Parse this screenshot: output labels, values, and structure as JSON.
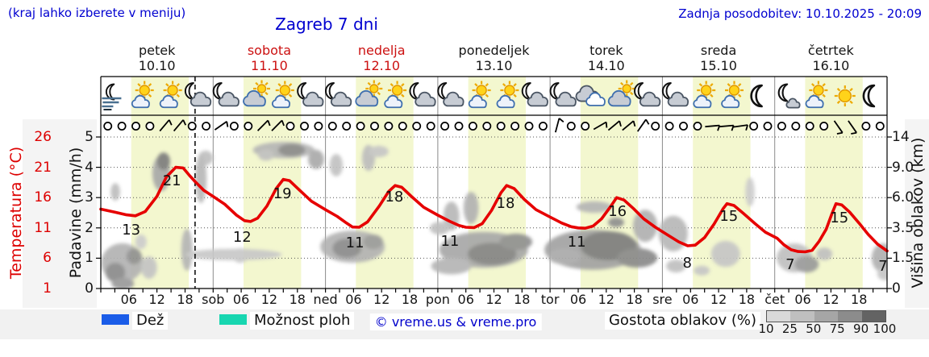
{
  "header": {
    "hint": "(kraj lahko izberete v meniju)",
    "title": "Zagreb 7 dni",
    "updated": "Zadnja posodobitev: 10.10.2025 - 20:09"
  },
  "days": [
    {
      "name": "petek",
      "date": "10.10",
      "weekend": false
    },
    {
      "name": "sobota",
      "date": "11.10",
      "weekend": true
    },
    {
      "name": "nedelja",
      "date": "12.10",
      "weekend": true
    },
    {
      "name": "ponedeljek",
      "date": "13.10",
      "weekend": false
    },
    {
      "name": "torek",
      "date": "14.10",
      "weekend": false
    },
    {
      "name": "sreda",
      "date": "15.10",
      "weekend": false
    },
    {
      "name": "četrtek",
      "date": "16.10",
      "weekend": false
    }
  ],
  "axes": {
    "temp_label": "Temperatura (°C)",
    "temp_ticks": [
      "26",
      "21",
      "16",
      "11",
      "6",
      "1"
    ],
    "precip_label": "Padavine (mm/h)",
    "precip_ticks": [
      "5",
      "4",
      "3",
      "2",
      "1",
      "0"
    ],
    "cloud_label": "Višina oblakov (km)",
    "cloud_ticks": [
      "14",
      "9.0",
      "6.0",
      "3.5",
      "1.5",
      "0"
    ],
    "hour_labels": [
      "06",
      "12",
      "18"
    ],
    "day_abbr": [
      "sob",
      "ned",
      "pon",
      "tor",
      "sre",
      "čet"
    ]
  },
  "legend": {
    "rain_label": "Dež",
    "rain_color": "#1a5ce8",
    "showers_label": "Možnost ploh",
    "showers_color": "#17d6b0",
    "copyright": "© vreme.us & vreme.pro",
    "cloud_density_label": "Gostota oblakov (%)",
    "density_ticks": [
      "10",
      "25",
      "50",
      "75",
      "90",
      "100"
    ],
    "density_colors": [
      "#d9d9d9",
      "#bfbfbf",
      "#a6a6a6",
      "#8c8c8c",
      "#636363"
    ]
  },
  "chart_data": {
    "type": "line",
    "title": "Zagreb 7 dni",
    "x_axis": "hours from 10.10.2025 00:00, ticks every 3h, labels 06/12/18 per day",
    "x_range": [
      0,
      168
    ],
    "y_left_precip_mm_range": [
      0,
      5
    ],
    "y_left_temp_c_ticks": [
      1,
      6,
      11,
      16,
      21,
      26
    ],
    "y_right_cloud_km_ticks": [
      0,
      1.5,
      3.5,
      6.0,
      9.0,
      14
    ],
    "current_time_hour": 20.15,
    "band_color": "#f3f7cf",
    "daylight_bands_h": [
      [
        6.5,
        18.8
      ],
      [
        30.5,
        42.8
      ],
      [
        54.5,
        66.8
      ],
      [
        78.5,
        90.8
      ],
      [
        102.5,
        114.8
      ],
      [
        126.5,
        138.8
      ],
      [
        150.5,
        162.8
      ]
    ],
    "daily_min_max": [
      [
        "petek",
        13,
        21
      ],
      [
        "sobota",
        12,
        19
      ],
      [
        "nedelja",
        11,
        18
      ],
      [
        "ponedeljek",
        11,
        18
      ],
      [
        "torek",
        11,
        16
      ],
      [
        "sreda",
        8,
        15
      ],
      [
        "četrtek",
        7,
        15
      ]
    ],
    "temperature_c": {
      "name": "Temperatura (°C)",
      "color": "#e60000",
      "points": [
        [
          0,
          14.1
        ],
        [
          3,
          13.6
        ],
        [
          5.5,
          13.15
        ],
        [
          7.4,
          13.0
        ],
        [
          9.5,
          13.7
        ],
        [
          12,
          16.2
        ],
        [
          14,
          19.4
        ],
        [
          16,
          21.0
        ],
        [
          17.6,
          20.9
        ],
        [
          19,
          19.6
        ],
        [
          20.2,
          18.6
        ],
        [
          22,
          17.2
        ],
        [
          24,
          16.2
        ],
        [
          26.5,
          14.9
        ],
        [
          29,
          13.1
        ],
        [
          30.7,
          12.2
        ],
        [
          32,
          12.05
        ],
        [
          33.5,
          12.6
        ],
        [
          35.5,
          14.6
        ],
        [
          37.5,
          17.5
        ],
        [
          39,
          19.0
        ],
        [
          40.3,
          18.8
        ],
        [
          42.5,
          17.2
        ],
        [
          45,
          15.4
        ],
        [
          48,
          14.0
        ],
        [
          50.5,
          12.9
        ],
        [
          52.5,
          11.8
        ],
        [
          53.8,
          11.15
        ],
        [
          55.2,
          11.1
        ],
        [
          57,
          12.0
        ],
        [
          59.5,
          14.6
        ],
        [
          61.5,
          17.0
        ],
        [
          62.9,
          18.0
        ],
        [
          64.3,
          17.7
        ],
        [
          66.5,
          16.1
        ],
        [
          69,
          14.4
        ],
        [
          72,
          13.1
        ],
        [
          74.5,
          12.1
        ],
        [
          76.5,
          11.4
        ],
        [
          78,
          11.1
        ],
        [
          79.8,
          11.05
        ],
        [
          81.5,
          11.7
        ],
        [
          83.5,
          13.9
        ],
        [
          85.5,
          16.8
        ],
        [
          86.7,
          18.0
        ],
        [
          88.3,
          17.5
        ],
        [
          90.5,
          15.7
        ],
        [
          93,
          14.0
        ],
        [
          96,
          12.8
        ],
        [
          98.5,
          11.8
        ],
        [
          100.5,
          11.2
        ],
        [
          102,
          11.0
        ],
        [
          103.5,
          10.95
        ],
        [
          105.2,
          11.3
        ],
        [
          107,
          12.5
        ],
        [
          109,
          14.6
        ],
        [
          110.2,
          16.0
        ],
        [
          111.8,
          15.6
        ],
        [
          113.8,
          14.2
        ],
        [
          116,
          12.5
        ],
        [
          118.5,
          11.1
        ],
        [
          121,
          9.9
        ],
        [
          123.5,
          8.7
        ],
        [
          125.4,
          8.05
        ],
        [
          127,
          8.15
        ],
        [
          129,
          9.4
        ],
        [
          131,
          11.6
        ],
        [
          133,
          14.2
        ],
        [
          133.8,
          15.0
        ],
        [
          135.3,
          14.7
        ],
        [
          137.3,
          13.4
        ],
        [
          139.8,
          11.7
        ],
        [
          142,
          10.3
        ],
        [
          144.5,
          9.3
        ],
        [
          146,
          8.2
        ],
        [
          147.5,
          7.4
        ],
        [
          149,
          7.1
        ],
        [
          150.5,
          7.05
        ],
        [
          152,
          7.3
        ],
        [
          153.5,
          8.8
        ],
        [
          155,
          10.8
        ],
        [
          156.2,
          13.3
        ],
        [
          157.1,
          15.0
        ],
        [
          158.3,
          14.8
        ],
        [
          160,
          13.6
        ],
        [
          162,
          11.8
        ],
        [
          164,
          9.9
        ],
        [
          166,
          8.3
        ],
        [
          168,
          7.2
        ]
      ]
    },
    "temp_point_labels": [
      [
        6.5,
        1.94,
        "13"
      ],
      [
        15.2,
        3.56,
        "21"
      ],
      [
        30.2,
        1.7,
        "12"
      ],
      [
        38.8,
        3.14,
        "19"
      ],
      [
        54.3,
        1.52,
        "11"
      ],
      [
        62.7,
        3.03,
        "18"
      ],
      [
        74.6,
        1.57,
        "11"
      ],
      [
        86.5,
        2.82,
        "18"
      ],
      [
        101.7,
        1.54,
        "11"
      ],
      [
        110.4,
        2.55,
        "16"
      ],
      [
        125.3,
        0.85,
        "8"
      ],
      [
        134.2,
        2.39,
        "15"
      ],
      [
        147.3,
        0.8,
        "7"
      ],
      [
        157.8,
        2.34,
        "15"
      ],
      [
        167.1,
        0.74,
        "7"
      ]
    ],
    "sky_icons": [
      "fog-moon",
      "sun-cloud",
      "sun-cloud",
      "moon-cloud",
      "moon-cloud",
      "cloud-sun",
      "sun-cloud",
      "moon-cloud",
      "moon-cloud",
      "cloud-sun",
      "sun-cloud",
      "moon-cloud",
      "moon-cloud",
      "sun-cloud",
      "sun-cloud",
      "moon-cloud",
      "moon-cloud",
      "cloud",
      "cloud-sun",
      "moon-cloud",
      "moon-cloud",
      "sun-cloud",
      "sun-cloud",
      "moon",
      "moon-smallcloud",
      "sun-cloud",
      "sun",
      "moon"
    ],
    "wind_barbs": [
      "o",
      "o",
      "o",
      "o",
      -50,
      -50,
      "o",
      "o",
      -35,
      "o",
      "o",
      -45,
      -45,
      "o",
      "o",
      "o",
      "o",
      "o",
      "o",
      "o",
      "o",
      "o",
      "o",
      "o",
      "o",
      "o",
      "o",
      "o",
      "o",
      "o",
      "o",
      "o",
      -75,
      "o",
      "o",
      -30,
      -40,
      -40,
      -55,
      "o",
      "o",
      "o",
      "o",
      -5,
      -5,
      -8,
      "o",
      "o",
      "o",
      "o",
      "o",
      "o",
      55,
      55,
      "o",
      "o"
    ],
    "clouds_mm": [
      [
        4.6,
        0.85,
        4.5,
        0.64,
        "#b2b2b2"
      ],
      [
        3.1,
        0.53,
        2.1,
        0.32,
        "#8a8a8a"
      ],
      [
        7.1,
        1.06,
        1.6,
        0.26,
        "#909090"
      ],
      [
        4.7,
        0.16,
        2.4,
        0.2,
        "#9a9a9a"
      ],
      [
        10.3,
        0.69,
        1.7,
        0.37,
        "#c4c4c4"
      ],
      [
        3.1,
        3.19,
        1.0,
        0.29,
        "#bdbdbd"
      ],
      [
        8.6,
        1.54,
        1.2,
        0.24,
        "#cccccc"
      ],
      [
        12.9,
        3.8,
        1.9,
        0.59,
        "#a8a8a8"
      ],
      [
        13.4,
        4.2,
        1.4,
        0.29,
        "#7d7d7d"
      ],
      [
        18.4,
        1.28,
        1.2,
        0.69,
        "#b5b5b5"
      ],
      [
        22.4,
        4.31,
        1.6,
        0.24,
        "#c0c0c0"
      ],
      [
        21.4,
        3.62,
        1.2,
        0.8,
        "#b8b8b8"
      ],
      [
        29.8,
        1.09,
        1.7,
        0.24,
        "#c6c6c6"
      ],
      [
        39.1,
        4.57,
        6.6,
        0.27,
        "#b5b5b5"
      ],
      [
        40.8,
        4.57,
        2.9,
        0.21,
        "#8a8a8a"
      ],
      [
        35.3,
        4.41,
        1.7,
        0.19,
        "#c0c0c0"
      ],
      [
        46.0,
        4.26,
        1.7,
        0.32,
        "#aaaaaa"
      ],
      [
        28.4,
        1.12,
        10.3,
        0.19,
        "#c8c8c8"
      ],
      [
        53.8,
        1.38,
        6.9,
        0.53,
        "#b2b2b2"
      ],
      [
        52.6,
        1.33,
        3.1,
        0.32,
        "#8a8a8a"
      ],
      [
        58.2,
        1.54,
        2.1,
        0.24,
        "#9a9a9a"
      ],
      [
        50.3,
        4.07,
        1.4,
        0.37,
        "#c2c2c2"
      ],
      [
        57.2,
        4.31,
        1.4,
        0.43,
        "#bdbdbd"
      ],
      [
        59.4,
        4.52,
        2.1,
        0.19,
        "#c6c6c6"
      ],
      [
        74.9,
        2.39,
        1.7,
        0.48,
        "#b8b8b8"
      ],
      [
        79.1,
        2.66,
        1.6,
        0.53,
        "#b2b2b2"
      ],
      [
        81.8,
        1.28,
        9.5,
        0.59,
        "#a8a8a8"
      ],
      [
        83.6,
        1.14,
        5.2,
        0.37,
        "#858585"
      ],
      [
        88.7,
        1.54,
        3.5,
        0.27,
        "#909090"
      ],
      [
        74.9,
        0.74,
        4.3,
        0.27,
        "#b5b5b5"
      ],
      [
        72.4,
        1.99,
        2.1,
        0.21,
        "#c0c0c0"
      ],
      [
        105.1,
        1.28,
        10.3,
        0.66,
        "#a2a2a2"
      ],
      [
        108.5,
        1.41,
        6.0,
        0.48,
        "#7d7d7d"
      ],
      [
        114.6,
        1.01,
        4.3,
        0.32,
        "#8a8a8a"
      ],
      [
        99.1,
        1.06,
        3.5,
        0.27,
        "#aaaaaa"
      ],
      [
        105.4,
        2.69,
        3.8,
        0.19,
        "#b5b5b5"
      ],
      [
        110.1,
        2.18,
        1.7,
        0.16,
        "#8f8f8f"
      ],
      [
        116.3,
        2.07,
        2.6,
        0.53,
        "#b0b0b0"
      ],
      [
        122.3,
        1.81,
        3.1,
        0.59,
        "#b8b8b8"
      ],
      [
        122.9,
        0.74,
        2.1,
        0.21,
        "#c0c0c0"
      ],
      [
        133.5,
        1.14,
        3.1,
        0.43,
        "#c6c6c6"
      ],
      [
        138.7,
        3.19,
        1.0,
        0.48,
        "#cccccc"
      ],
      [
        128.4,
        0.59,
        1.7,
        0.16,
        "#c6c6c6"
      ],
      [
        148.2,
        1.01,
        3.8,
        0.48,
        "#c0c0c0"
      ],
      [
        150.8,
        0.8,
        2.6,
        0.27,
        "#9a9a9a"
      ],
      [
        154.6,
        1.14,
        1.7,
        0.21,
        "#c0c0c0"
      ],
      [
        167.1,
        1.01,
        2.4,
        0.48,
        "#b0b0b0"
      ],
      [
        167.6,
        0.48,
        1.7,
        0.21,
        "#c6c6c6"
      ]
    ]
  }
}
